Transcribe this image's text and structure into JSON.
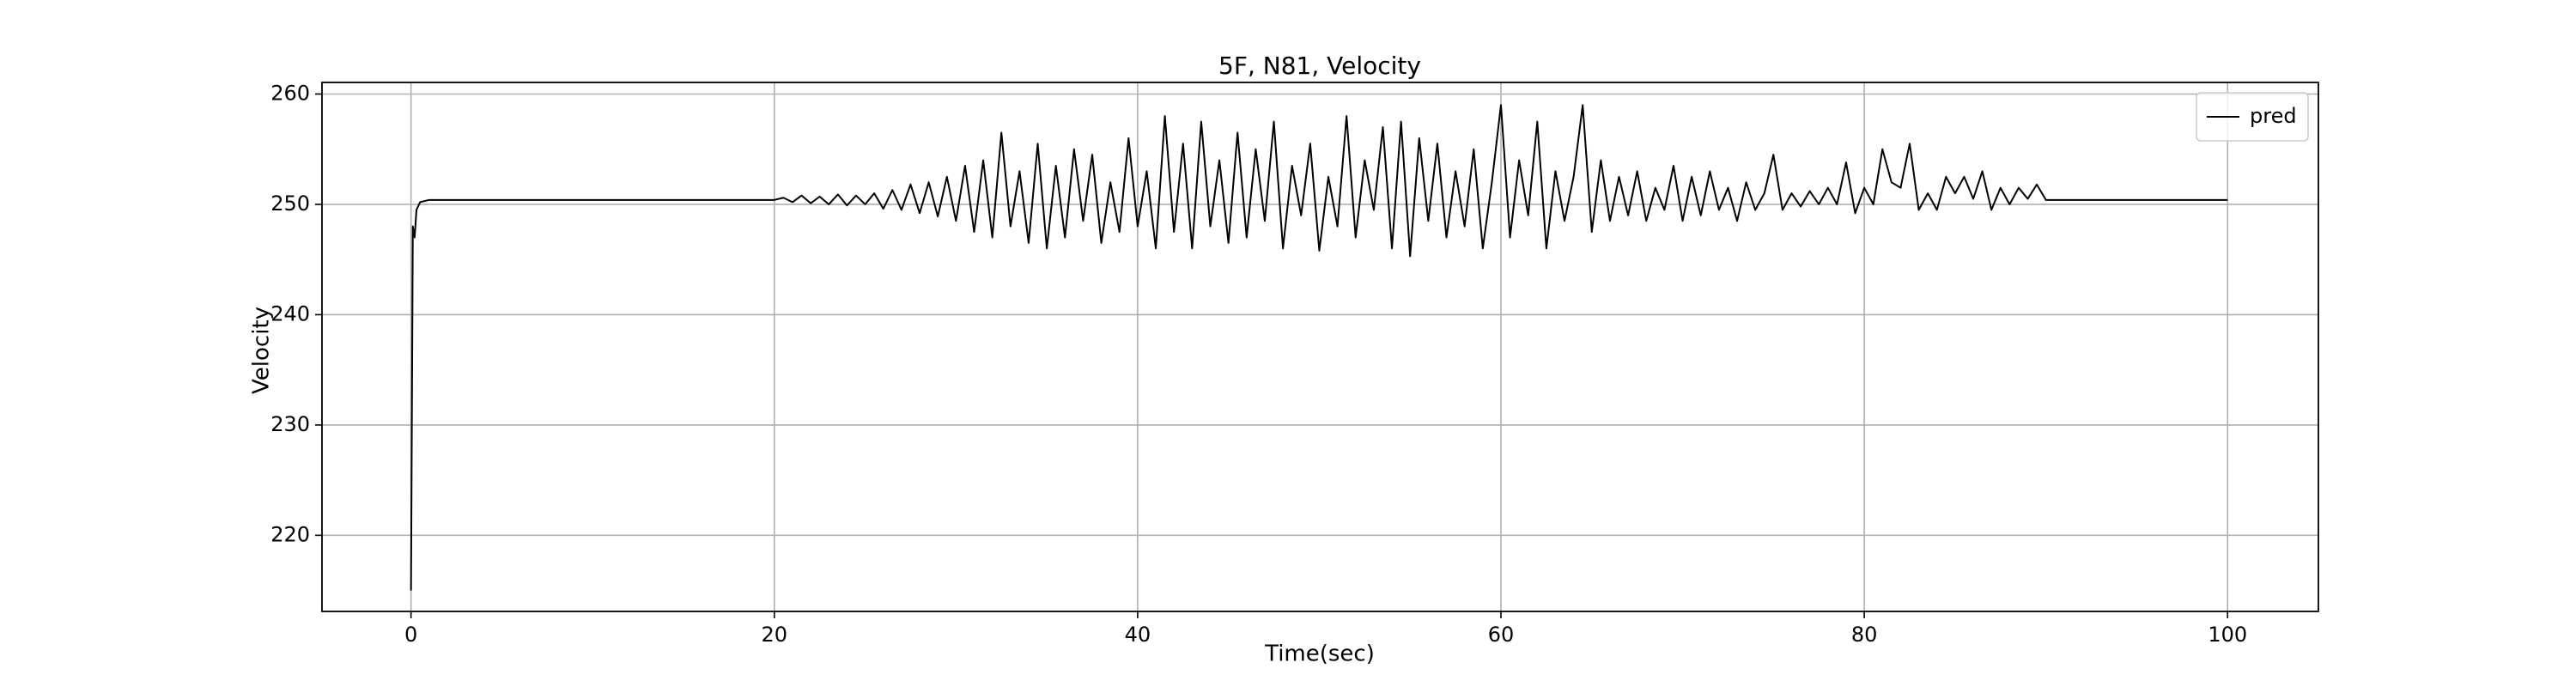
{
  "chart_data": {
    "type": "line",
    "title": "5F, N81, Velocity",
    "x_label": "Time(sec)",
    "y_label": "Velocity",
    "x": [
      0,
      0.1,
      0.2,
      0.3,
      0.5,
      1,
      5,
      10,
      15,
      20,
      20.5,
      21,
      21.5,
      22,
      22.5,
      23,
      23.5,
      24,
      24.5,
      25,
      25.5,
      26,
      26.5,
      27,
      27.5,
      28,
      28.5,
      29,
      29.5,
      30,
      30.5,
      31,
      31.5,
      32,
      32.5,
      33,
      33.5,
      34,
      34.5,
      35,
      35.5,
      36,
      36.5,
      37,
      37.5,
      38,
      38.5,
      39,
      39.5,
      40,
      40.5,
      41,
      41.5,
      42,
      42.5,
      43,
      43.5,
      44,
      44.5,
      45,
      45.5,
      46,
      46.5,
      47,
      47.5,
      48,
      48.5,
      49,
      49.5,
      50,
      50.5,
      51,
      51.5,
      52,
      52.5,
      53,
      53.5,
      54,
      54.5,
      55,
      55.5,
      56,
      56.5,
      57,
      57.5,
      58,
      58.5,
      59,
      59.5,
      60,
      60.5,
      61,
      61.5,
      62,
      62.5,
      63,
      63.5,
      64,
      64.5,
      65,
      65.5,
      66,
      66.5,
      67,
      67.5,
      68,
      68.5,
      69,
      69.5,
      70,
      70.5,
      71,
      71.5,
      72,
      72.5,
      73,
      73.5,
      74,
      74.5,
      75,
      75.5,
      76,
      76.5,
      77,
      77.5,
      78,
      78.5,
      79,
      79.5,
      80,
      80.5,
      81,
      81.5,
      82,
      82.5,
      83,
      83.5,
      84,
      84.5,
      85,
      85.5,
      86,
      86.5,
      87,
      87.5,
      88,
      88.5,
      89,
      89.5,
      90,
      95,
      100
    ],
    "series": [
      {
        "name": "pred",
        "color": "#000000",
        "values": [
          215,
          248,
          247,
          249.5,
          250.2,
          250.4,
          250.4,
          250.4,
          250.4,
          250.4,
          250.6,
          250.2,
          250.8,
          250.1,
          250.7,
          250.0,
          250.9,
          249.9,
          250.8,
          250.0,
          251.0,
          249.6,
          251.3,
          249.5,
          251.8,
          249.2,
          252.0,
          248.9,
          252.5,
          248.5,
          253.5,
          247.5,
          254.0,
          247.0,
          256.5,
          248.0,
          253.0,
          246.5,
          255.5,
          246.0,
          253.5,
          247.0,
          255.0,
          248.5,
          254.5,
          246.5,
          252.0,
          247.5,
          256.0,
          248.0,
          253.0,
          246.0,
          258.0,
          247.5,
          255.5,
          246.0,
          257.5,
          248.0,
          254.0,
          246.5,
          256.5,
          247.0,
          255.0,
          248.5,
          257.5,
          246.0,
          253.5,
          249.0,
          255.5,
          245.8,
          252.5,
          248.0,
          258.0,
          247.0,
          254.0,
          249.5,
          257.0,
          246.0,
          257.5,
          245.3,
          256.0,
          248.5,
          255.5,
          247.0,
          253.0,
          248.0,
          255.0,
          246.0,
          252.0,
          259.0,
          247.0,
          254.0,
          249.0,
          257.5,
          246.0,
          253.0,
          248.5,
          252.5,
          259.0,
          247.5,
          254.0,
          248.5,
          252.5,
          249.0,
          253.0,
          248.5,
          251.5,
          249.5,
          253.5,
          248.5,
          252.5,
          249.0,
          253.0,
          249.5,
          251.5,
          248.5,
          252.0,
          249.5,
          251.0,
          254.5,
          249.5,
          251.0,
          249.8,
          251.2,
          250.0,
          251.5,
          250.0,
          253.8,
          249.2,
          251.5,
          250.0,
          255.0,
          252.0,
          251.5,
          255.5,
          249.5,
          251.0,
          249.5,
          252.5,
          251.0,
          252.5,
          250.5,
          253.0,
          249.5,
          251.5,
          250.0,
          251.5,
          250.5,
          251.8,
          250.4,
          250.4,
          250.4
        ]
      }
    ],
    "xlim": [
      -4.9,
      105
    ],
    "ylim": [
      213.1,
      261.05
    ],
    "xticks": [
      0,
      20,
      40,
      60,
      80,
      100
    ],
    "yticks": [
      220,
      230,
      240,
      250,
      260
    ],
    "grid": true,
    "legend": "upper right"
  }
}
